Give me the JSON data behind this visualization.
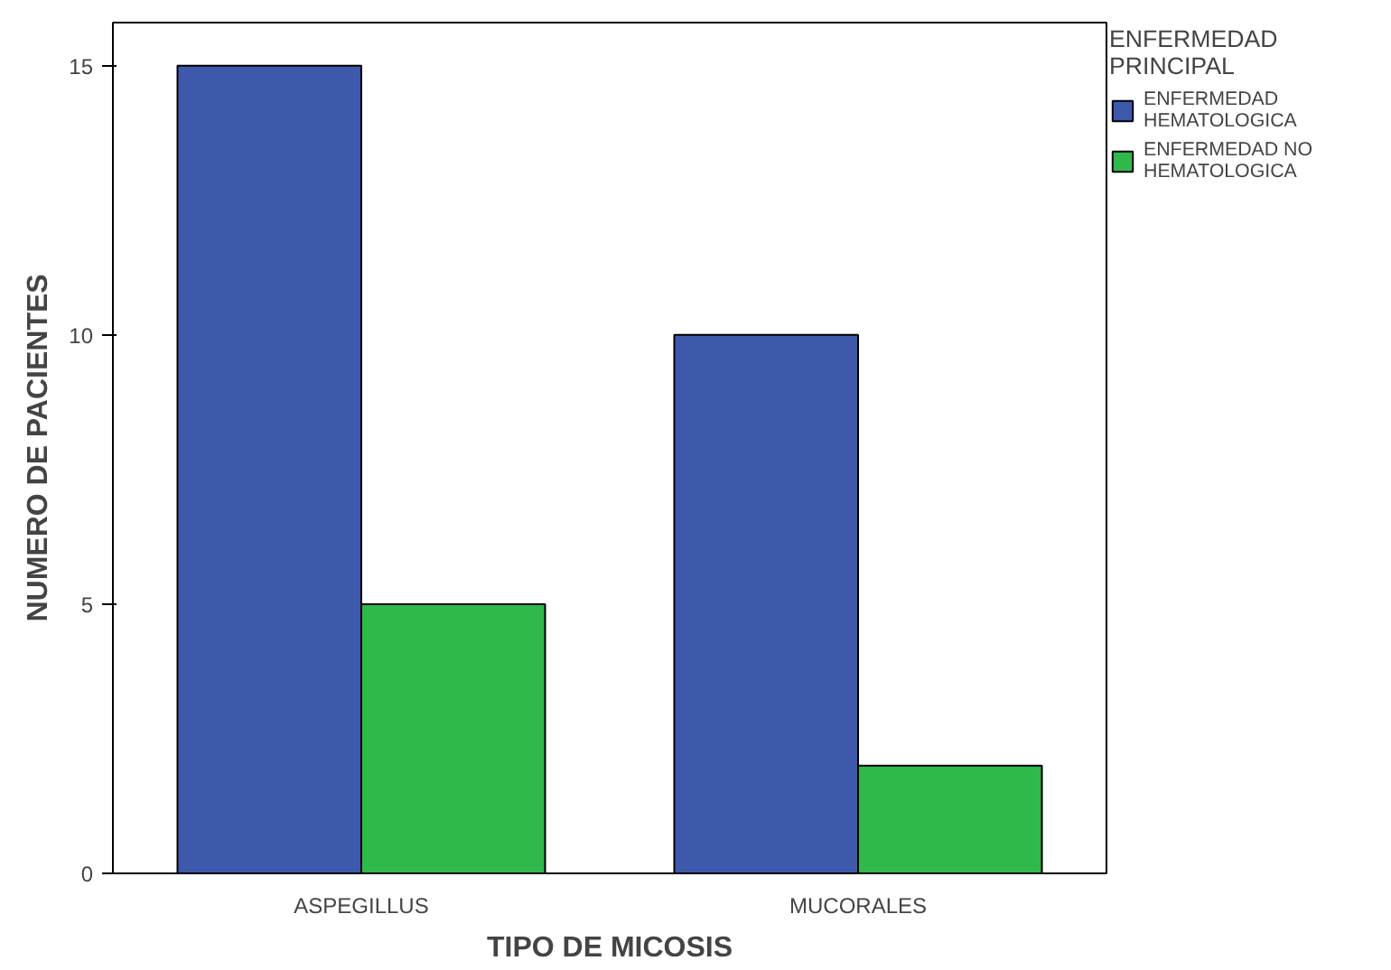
{
  "chart_data": {
    "type": "bar",
    "xlabel": "TIPO DE MICOSIS",
    "ylabel": "NUMERO DE PACIENTES",
    "legend_title": "ENFERMEDAD PRINCIPAL",
    "categories": [
      "ASPEGILLUS",
      "MUCORALES"
    ],
    "series": [
      {
        "name": "ENFERMEDAD HEMATOLOGICA",
        "color": "#3e58ac",
        "values": [
          15,
          10
        ]
      },
      {
        "name": "ENFERMEDAD NO HEMATOLOGICA",
        "color": "#2fb94a",
        "values": [
          5,
          2
        ]
      }
    ],
    "ylim": [
      0,
      15.8
    ],
    "yticks": [
      0,
      5,
      10,
      15
    ],
    "grid": false,
    "legend": "top right"
  }
}
